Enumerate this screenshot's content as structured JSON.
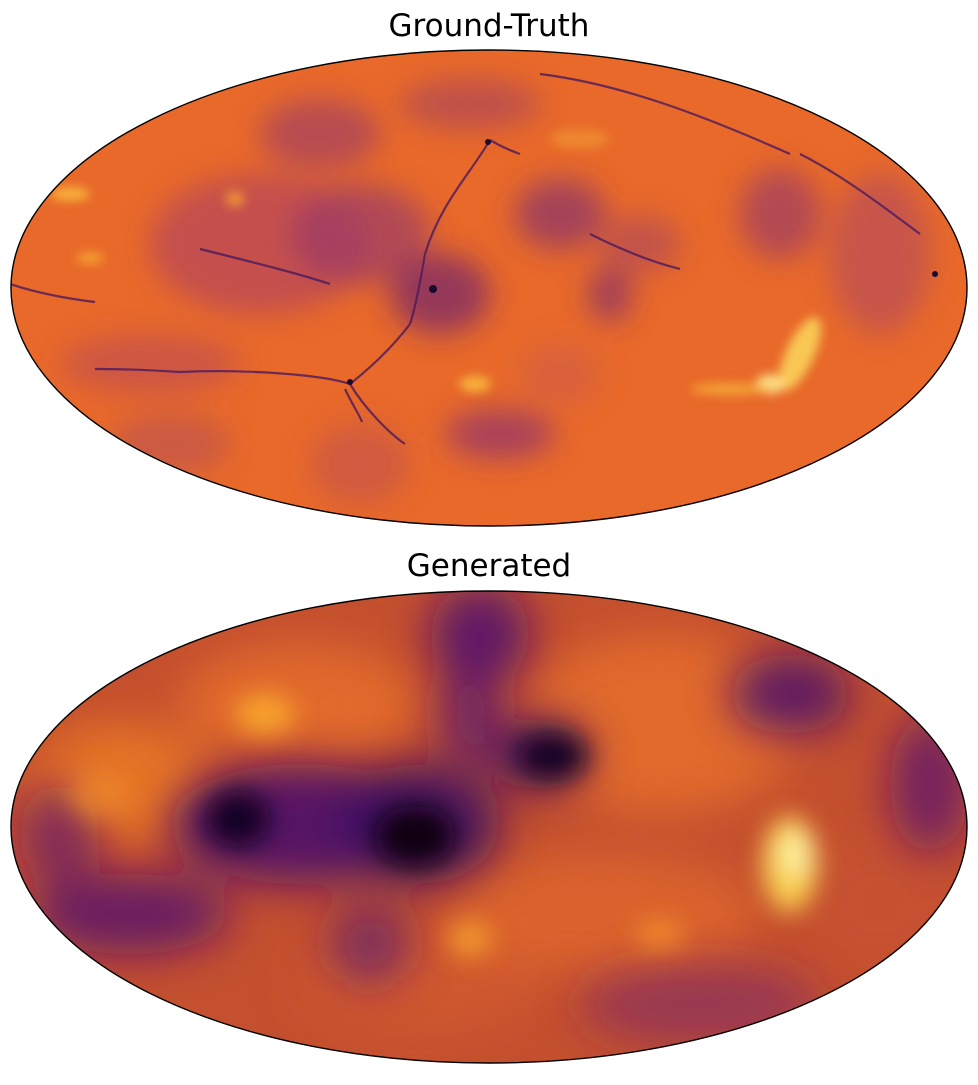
{
  "panels": [
    {
      "title": "Ground-Truth",
      "projection": "mollweide",
      "colormap": "inferno",
      "base_color": "#e8692a"
    },
    {
      "title": "Generated",
      "projection": "mollweide",
      "colormap": "inferno",
      "base_color": "#c9502f"
    }
  ],
  "colors": {
    "outline": "#000000",
    "background": "#ffffff"
  }
}
